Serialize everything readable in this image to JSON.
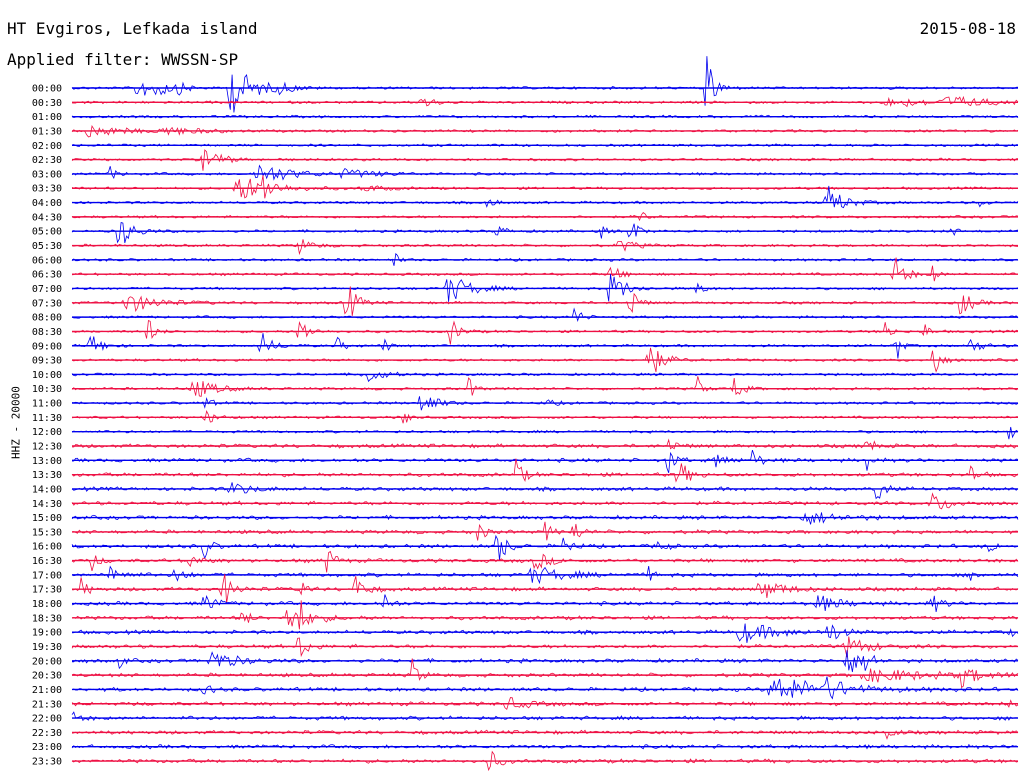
{
  "header": {
    "station": "HT Evgiros, Lefkada island",
    "date": "2015-08-18",
    "filter": "Applied filter: WWSSN-SP",
    "channel": "HHZ - 20000"
  },
  "colors": {
    "blue": "#0000ee",
    "red": "#ee1144",
    "text": "#000000",
    "background": "#ffffff"
  },
  "chart_data": {
    "type": "line",
    "description_free": true,
    "ylabel": "HHZ - 20000",
    "trace_colors_cycle": [
      "blue",
      "red"
    ],
    "rows": [
      {
        "label": "00:00",
        "color": "blue",
        "events": [
          [
            0.07,
            14,
            0.01
          ],
          [
            0.17,
            26,
            0.02
          ],
          [
            0.09,
            9,
            0.012
          ],
          [
            0.11,
            6,
            0.01
          ],
          [
            0.22,
            5,
            0.01
          ],
          [
            0.67,
            36,
            0.008
          ]
        ]
      },
      {
        "label": "00:30",
        "color": "red",
        "events": [
          [
            0.37,
            7,
            0.01
          ],
          [
            0.87,
            4,
            0.05
          ],
          [
            0.93,
            5,
            0.03
          ]
        ]
      },
      {
        "label": "01:00",
        "color": "blue",
        "events": []
      },
      {
        "label": "01:30",
        "color": "red",
        "events": [
          [
            0.02,
            6,
            0.03
          ],
          [
            0.1,
            4,
            0.03
          ]
        ]
      },
      {
        "label": "02:00",
        "color": "blue",
        "events": []
      },
      {
        "label": "02:30",
        "color": "red",
        "events": [
          [
            0.14,
            12,
            0.015
          ]
        ]
      },
      {
        "label": "03:00",
        "color": "blue",
        "events": [
          [
            0.04,
            7,
            0.006
          ],
          [
            0.2,
            10,
            0.03
          ],
          [
            0.29,
            4,
            0.03
          ]
        ]
      },
      {
        "label": "03:30",
        "color": "red",
        "events": [
          [
            0.18,
            12,
            0.03
          ],
          [
            0.2,
            16,
            0.006
          ],
          [
            0.31,
            3,
            0.02
          ]
        ]
      },
      {
        "label": "04:00",
        "color": "blue",
        "events": [
          [
            0.44,
            7,
            0.006
          ],
          [
            0.8,
            16,
            0.015
          ],
          [
            0.96,
            4,
            0.006
          ]
        ]
      },
      {
        "label": "04:30",
        "color": "red",
        "events": [
          [
            0.6,
            9,
            0.005
          ]
        ]
      },
      {
        "label": "05:00",
        "color": "blue",
        "events": [
          [
            0.05,
            18,
            0.012
          ],
          [
            0.45,
            6,
            0.008
          ],
          [
            0.56,
            9,
            0.004
          ],
          [
            0.59,
            18,
            0.006
          ],
          [
            0.93,
            7,
            0.004
          ]
        ]
      },
      {
        "label": "05:30",
        "color": "red",
        "events": [
          [
            0.24,
            8,
            0.012
          ],
          [
            0.58,
            6,
            0.015
          ]
        ]
      },
      {
        "label": "06:00",
        "color": "blue",
        "events": [
          [
            0.34,
            10,
            0.004
          ]
        ]
      },
      {
        "label": "06:30",
        "color": "red",
        "events": [
          [
            0.57,
            8,
            0.01
          ],
          [
            0.87,
            18,
            0.01
          ],
          [
            0.91,
            10,
            0.004
          ]
        ]
      },
      {
        "label": "07:00",
        "color": "blue",
        "events": [
          [
            0.4,
            14,
            0.02
          ],
          [
            0.57,
            20,
            0.012
          ],
          [
            0.66,
            9,
            0.006
          ]
        ]
      },
      {
        "label": "07:30",
        "color": "red",
        "events": [
          [
            0.06,
            9,
            0.03
          ],
          [
            0.29,
            28,
            0.008
          ],
          [
            0.59,
            24,
            0.006
          ],
          [
            0.94,
            14,
            0.01
          ]
        ]
      },
      {
        "label": "08:00",
        "color": "blue",
        "events": [
          [
            0.53,
            14,
            0.006
          ]
        ]
      },
      {
        "label": "08:30",
        "color": "red",
        "events": [
          [
            0.08,
            16,
            0.006
          ],
          [
            0.24,
            16,
            0.008
          ],
          [
            0.4,
            14,
            0.008
          ],
          [
            0.86,
            18,
            0.004
          ],
          [
            0.9,
            14,
            0.004
          ]
        ]
      },
      {
        "label": "09:00",
        "color": "blue",
        "events": [
          [
            0.02,
            12,
            0.01
          ],
          [
            0.2,
            14,
            0.01
          ],
          [
            0.28,
            9,
            0.006
          ],
          [
            0.33,
            10,
            0.004
          ],
          [
            0.87,
            30,
            0.004
          ],
          [
            0.95,
            8,
            0.01
          ]
        ]
      },
      {
        "label": "09:30",
        "color": "red",
        "events": [
          [
            0.61,
            20,
            0.012
          ],
          [
            0.91,
            26,
            0.006
          ]
        ]
      },
      {
        "label": "10:00",
        "color": "blue",
        "events": [
          [
            0.31,
            9,
            0.015
          ]
        ]
      },
      {
        "label": "10:30",
        "color": "red",
        "events": [
          [
            0.13,
            10,
            0.02
          ],
          [
            0.42,
            14,
            0.005
          ],
          [
            0.66,
            16,
            0.005
          ],
          [
            0.7,
            12,
            0.008
          ]
        ]
      },
      {
        "label": "11:00",
        "color": "blue",
        "events": [
          [
            0.14,
            8,
            0.006
          ],
          [
            0.37,
            14,
            0.012
          ],
          [
            0.5,
            4,
            0.01
          ]
        ]
      },
      {
        "label": "11:30",
        "color": "red",
        "events": [
          [
            0.14,
            8,
            0.01
          ],
          [
            0.35,
            12,
            0.004
          ]
        ]
      },
      {
        "label": "12:00",
        "color": "blue",
        "events": [
          [
            0.99,
            20,
            0.004
          ]
        ]
      },
      {
        "label": "12:30",
        "color": "red",
        "events": [
          [
            0.63,
            6,
            0.01
          ],
          [
            0.84,
            10,
            0.006
          ]
        ]
      },
      {
        "label": "13:00",
        "color": "blue",
        "events": [
          [
            0.63,
            16,
            0.006
          ],
          [
            0.68,
            8,
            0.01
          ],
          [
            0.72,
            12,
            0.006
          ],
          [
            0.84,
            14,
            0.004
          ]
        ]
      },
      {
        "label": "13:30",
        "color": "red",
        "events": [
          [
            0.47,
            20,
            0.006
          ],
          [
            0.64,
            16,
            0.01
          ],
          [
            0.95,
            10,
            0.006
          ]
        ]
      },
      {
        "label": "14:00",
        "color": "blue",
        "events": [
          [
            0.17,
            6,
            0.02
          ],
          [
            0.85,
            20,
            0.006
          ]
        ]
      },
      {
        "label": "14:30",
        "color": "red",
        "events": [
          [
            0.91,
            10,
            0.015
          ]
        ]
      },
      {
        "label": "15:00",
        "color": "blue",
        "events": [
          [
            0.78,
            6,
            0.03
          ]
        ]
      },
      {
        "label": "15:30",
        "color": "red",
        "events": [
          [
            0.43,
            20,
            0.004
          ],
          [
            0.5,
            10,
            0.006
          ],
          [
            0.53,
            14,
            0.006
          ]
        ]
      },
      {
        "label": "16:00",
        "color": "blue",
        "events": [
          [
            0.14,
            14,
            0.006
          ],
          [
            0.45,
            20,
            0.008
          ],
          [
            0.52,
            14,
            0.006
          ],
          [
            0.62,
            6,
            0.008
          ],
          [
            0.97,
            10,
            0.004
          ]
        ]
      },
      {
        "label": "16:30",
        "color": "red",
        "events": [
          [
            0.02,
            12,
            0.006
          ],
          [
            0.12,
            10,
            0.01
          ],
          [
            0.27,
            16,
            0.006
          ],
          [
            0.49,
            10,
            0.012
          ]
        ]
      },
      {
        "label": "17:00",
        "color": "blue",
        "events": [
          [
            0.04,
            12,
            0.01
          ],
          [
            0.11,
            10,
            0.008
          ],
          [
            0.49,
            8,
            0.03
          ],
          [
            0.61,
            8,
            0.004
          ],
          [
            0.95,
            14,
            0.004
          ]
        ]
      },
      {
        "label": "17:30",
        "color": "red",
        "events": [
          [
            0.01,
            12,
            0.006
          ],
          [
            0.16,
            20,
            0.008
          ],
          [
            0.24,
            30,
            0.004
          ],
          [
            0.3,
            12,
            0.01
          ],
          [
            0.73,
            10,
            0.02
          ]
        ]
      },
      {
        "label": "18:00",
        "color": "blue",
        "events": [
          [
            0.14,
            10,
            0.01
          ],
          [
            0.33,
            12,
            0.006
          ],
          [
            0.79,
            8,
            0.02
          ],
          [
            0.91,
            10,
            0.008
          ]
        ]
      },
      {
        "label": "18:30",
        "color": "red",
        "events": [
          [
            0.23,
            14,
            0.02
          ],
          [
            0.24,
            30,
            0.002
          ],
          [
            0.18,
            12,
            0.006
          ]
        ]
      },
      {
        "label": "19:00",
        "color": "blue",
        "events": [
          [
            0.71,
            10,
            0.03
          ],
          [
            0.8,
            12,
            0.01
          ],
          [
            0.99,
            8,
            0.004
          ]
        ]
      },
      {
        "label": "19:30",
        "color": "red",
        "events": [
          [
            0.24,
            14,
            0.008
          ],
          [
            0.82,
            10,
            0.02
          ]
        ]
      },
      {
        "label": "20:00",
        "color": "blue",
        "events": [
          [
            0.05,
            8,
            0.004
          ],
          [
            0.15,
            10,
            0.02
          ],
          [
            0.82,
            18,
            0.01
          ],
          [
            0.84,
            14,
            0.006
          ]
        ]
      },
      {
        "label": "20:30",
        "color": "red",
        "events": [
          [
            0.36,
            16,
            0.006
          ],
          [
            0.85,
            6,
            0.06
          ],
          [
            0.94,
            10,
            0.015
          ]
        ]
      },
      {
        "label": "21:00",
        "color": "blue",
        "events": [
          [
            0.14,
            8,
            0.006
          ],
          [
            0.75,
            12,
            0.05
          ],
          [
            0.8,
            10,
            0.01
          ]
        ]
      },
      {
        "label": "21:30",
        "color": "red",
        "events": [
          [
            0.46,
            6,
            0.02
          ],
          [
            0.99,
            8,
            0.004
          ]
        ]
      },
      {
        "label": "22:00",
        "color": "blue",
        "events": [
          [
            0.0,
            6,
            0.008
          ]
        ]
      },
      {
        "label": "22:30",
        "color": "red",
        "events": [
          [
            0.86,
            12,
            0.006
          ]
        ]
      },
      {
        "label": "23:00",
        "color": "blue",
        "events": []
      },
      {
        "label": "23:30",
        "color": "red",
        "events": [
          [
            0.44,
            14,
            0.008
          ]
        ]
      }
    ]
  }
}
